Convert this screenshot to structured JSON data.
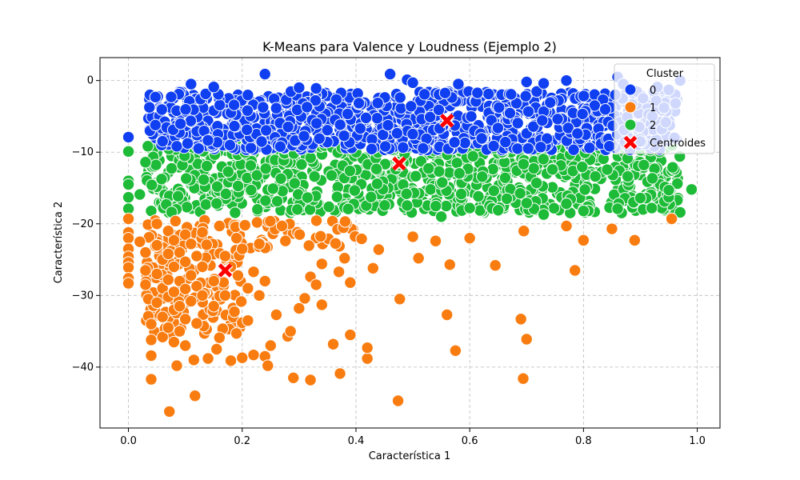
{
  "chart_data": {
    "type": "scatter",
    "title": "K-Means para Valence y Loudness (Ejemplo 2)",
    "xlabel": "Característica 1",
    "ylabel": "Característica 2",
    "xlim": [
      -0.05,
      1.04
    ],
    "ylim": [
      -48.5,
      3.2
    ],
    "xticks": [
      "0.0",
      "0.2",
      "0.4",
      "0.6",
      "0.8",
      "1.0"
    ],
    "yticks": [
      "0",
      "−10",
      "−20",
      "−30",
      "−40"
    ],
    "xtick_values": [
      0.0,
      0.2,
      0.4,
      0.6,
      0.8,
      1.0
    ],
    "ytick_values": [
      0,
      -10,
      -20,
      -30,
      -40
    ],
    "grid": true,
    "legend": {
      "title": "Cluster",
      "placement": "top-right",
      "entries": [
        {
          "label": "0",
          "color": "#0f3ff0",
          "marker": "circle"
        },
        {
          "label": "1",
          "color": "#f97c10",
          "marker": "circle"
        },
        {
          "label": "2",
          "color": "#1dbb37",
          "marker": "circle"
        },
        {
          "label": "Centroides",
          "color": "#ff0000",
          "marker": "x"
        }
      ]
    },
    "series": [
      {
        "name": "0",
        "color": "#0f3ff0",
        "description_of_dense_region": "dense band x 0.03–0.97, y -10 to -1",
        "points": [
          [
            0.0,
            -7.9
          ],
          [
            0.11,
            -0.5
          ],
          [
            0.15,
            -0.9
          ],
          [
            0.24,
            0.9
          ],
          [
            0.46,
            0.9
          ],
          [
            0.3,
            -1.0
          ],
          [
            0.33,
            -1.1
          ],
          [
            0.49,
            0.1
          ],
          [
            0.5,
            -0.3
          ],
          [
            0.58,
            -0.5
          ],
          [
            0.7,
            -0.2
          ],
          [
            0.73,
            -0.4
          ],
          [
            0.77,
            0.0
          ],
          [
            0.86,
            0.5
          ],
          [
            0.87,
            -0.5
          ],
          [
            0.93,
            -0.9
          ],
          [
            0.95,
            -1.3
          ],
          [
            0.97,
            0.0
          ],
          [
            0.9,
            -8.5
          ],
          [
            0.96,
            -8.0
          ]
        ]
      },
      {
        "name": "1",
        "color": "#f97c10",
        "points": [
          [
            0.0,
            -19.3
          ],
          [
            0.0,
            -21.2
          ],
          [
            0.0,
            -22.0
          ],
          [
            0.0,
            -23.5
          ],
          [
            0.0,
            -24.6
          ],
          [
            0.0,
            -25.4
          ],
          [
            0.0,
            -26.1
          ],
          [
            0.0,
            -27.6
          ],
          [
            0.0,
            -28.3
          ],
          [
            0.02,
            -22.5
          ],
          [
            0.03,
            -24.0
          ],
          [
            0.03,
            -26.5
          ],
          [
            0.03,
            -28.5
          ],
          [
            0.035,
            -30.5
          ],
          [
            0.035,
            -32.9
          ],
          [
            0.04,
            -34.0
          ],
          [
            0.04,
            -36.2
          ],
          [
            0.04,
            -38.4
          ],
          [
            0.04,
            -41.7
          ],
          [
            0.05,
            -20.0
          ],
          [
            0.05,
            -23.0
          ],
          [
            0.05,
            -27.0
          ],
          [
            0.05,
            -31.0
          ],
          [
            0.06,
            -25.0
          ],
          [
            0.06,
            -29.0
          ],
          [
            0.06,
            -33.0
          ],
          [
            0.06,
            -35.8
          ],
          [
            0.07,
            -21.0
          ],
          [
            0.07,
            -24.2
          ],
          [
            0.07,
            -27.8
          ],
          [
            0.07,
            -30.2
          ],
          [
            0.07,
            -34.5
          ],
          [
            0.072,
            -46.2
          ],
          [
            0.08,
            -22.3
          ],
          [
            0.08,
            -26.0
          ],
          [
            0.08,
            -29.5
          ],
          [
            0.08,
            -32.0
          ],
          [
            0.08,
            -36.5
          ],
          [
            0.085,
            -39.8
          ],
          [
            0.09,
            -24.0
          ],
          [
            0.09,
            -28.0
          ],
          [
            0.09,
            -31.5
          ],
          [
            0.09,
            -35.0
          ],
          [
            0.1,
            -21.5
          ],
          [
            0.1,
            -25.3
          ],
          [
            0.1,
            -29.1
          ],
          [
            0.1,
            -33.3
          ],
          [
            0.1,
            -37.0
          ],
          [
            0.11,
            -22.8
          ],
          [
            0.11,
            -27.2
          ],
          [
            0.11,
            -30.8
          ],
          [
            0.115,
            -39.0
          ],
          [
            0.117,
            -44.0
          ],
          [
            0.12,
            -24.5
          ],
          [
            0.12,
            -28.7
          ],
          [
            0.12,
            -33.9
          ],
          [
            0.13,
            -21.2
          ],
          [
            0.13,
            -26.0
          ],
          [
            0.13,
            -30.0
          ],
          [
            0.14,
            -38.8
          ],
          [
            0.15,
            -28.0
          ],
          [
            0.15,
            -31.5
          ],
          [
            0.155,
            -37.5
          ],
          [
            0.16,
            -20.3
          ],
          [
            0.16,
            -35.9
          ],
          [
            0.17,
            -24.5
          ],
          [
            0.17,
            -30.0
          ],
          [
            0.18,
            -39.1
          ],
          [
            0.18,
            -26.0
          ],
          [
            0.19,
            -35.3
          ],
          [
            0.19,
            -22.0
          ],
          [
            0.2,
            -33.8
          ],
          [
            0.2,
            -23.5
          ],
          [
            0.2,
            -38.7
          ],
          [
            0.21,
            -33.5
          ],
          [
            0.21,
            -29.0
          ],
          [
            0.22,
            -26.7
          ],
          [
            0.22,
            -38.3
          ],
          [
            0.23,
            -30.0
          ],
          [
            0.23,
            -22.8
          ],
          [
            0.24,
            -28.0
          ],
          [
            0.24,
            -38.5
          ],
          [
            0.245,
            -39.8
          ],
          [
            0.25,
            -37.0
          ],
          [
            0.26,
            -32.7
          ],
          [
            0.27,
            -20.3
          ],
          [
            0.28,
            -35.7
          ],
          [
            0.285,
            -35.0
          ],
          [
            0.29,
            -41.5
          ],
          [
            0.3,
            -31.8
          ],
          [
            0.31,
            -30.4
          ],
          [
            0.32,
            -27.4
          ],
          [
            0.32,
            -41.8
          ],
          [
            0.33,
            -28.5
          ],
          [
            0.34,
            -25.6
          ],
          [
            0.34,
            -31.3
          ],
          [
            0.36,
            -36.8
          ],
          [
            0.37,
            -26.7
          ],
          [
            0.372,
            -40.9
          ],
          [
            0.38,
            -24.8
          ],
          [
            0.39,
            -28.2
          ],
          [
            0.39,
            -35.5
          ],
          [
            0.41,
            -22.1
          ],
          [
            0.42,
            -38.8
          ],
          [
            0.42,
            -37.3
          ],
          [
            0.43,
            -26.2
          ],
          [
            0.44,
            -23.6
          ],
          [
            0.474,
            -44.7
          ],
          [
            0.477,
            -30.5
          ],
          [
            0.5,
            -21.8
          ],
          [
            0.51,
            -24.8
          ],
          [
            0.54,
            -22.4
          ],
          [
            0.56,
            -32.7
          ],
          [
            0.565,
            -25.7
          ],
          [
            0.575,
            -37.7
          ],
          [
            0.6,
            -22.0
          ],
          [
            0.645,
            -25.8
          ],
          [
            0.69,
            -33.3
          ],
          [
            0.694,
            -41.6
          ],
          [
            0.695,
            -21.0
          ],
          [
            0.7,
            -36.1
          ],
          [
            0.77,
            -20.3
          ],
          [
            0.785,
            -26.5
          ],
          [
            0.8,
            -22.3
          ],
          [
            0.85,
            -20.7
          ],
          [
            0.89,
            -22.3
          ],
          [
            0.955,
            -19.3
          ]
        ]
      },
      {
        "name": "2",
        "color": "#1dbb37",
        "description_of_dense_region": "dense band x 0.03–0.97, y -19 to -9",
        "points": [
          [
            0.0,
            -9.9
          ],
          [
            0.0,
            -14.0
          ],
          [
            0.0,
            -14.5
          ],
          [
            0.0,
            -16.3
          ],
          [
            0.0,
            -17.9
          ],
          [
            0.02,
            -15.9
          ],
          [
            0.03,
            -11.4
          ],
          [
            0.04,
            -18.2
          ],
          [
            0.55,
            -19.0
          ],
          [
            0.6,
            -17.8
          ],
          [
            0.65,
            -18.1
          ],
          [
            0.7,
            -17.1
          ],
          [
            0.73,
            -18.7
          ],
          [
            0.77,
            -17.2
          ],
          [
            0.8,
            -18.2
          ],
          [
            0.86,
            -17.9
          ],
          [
            0.9,
            -16.4
          ],
          [
            0.92,
            -17.8
          ],
          [
            0.95,
            -15.3
          ],
          [
            0.99,
            -15.2
          ],
          [
            0.97,
            -18.4
          ]
        ]
      }
    ],
    "centroids": [
      {
        "x": 0.17,
        "y": -26.5
      },
      {
        "x": 0.476,
        "y": -11.6
      },
      {
        "x": 0.56,
        "y": -5.6
      }
    ]
  }
}
